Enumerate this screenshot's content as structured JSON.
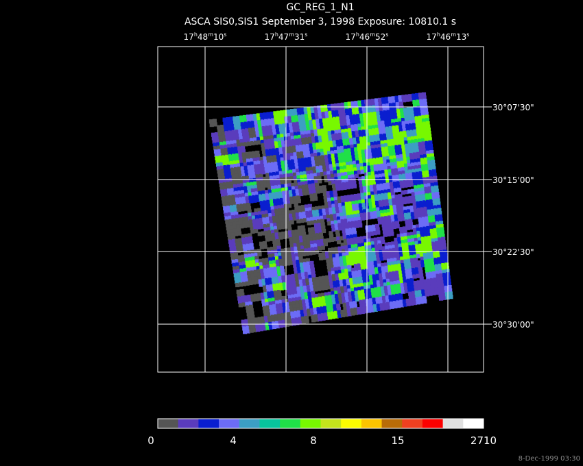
{
  "header": {
    "title": "GC_REG_1_N1",
    "subtitle": "ASCA SIS0,SIS1 September 3, 1998 Exposure: 10810.1 s"
  },
  "ra_labels": [
    [
      "17",
      "h",
      "48",
      "m",
      "10",
      "s"
    ],
    [
      "17",
      "h",
      "47",
      "m",
      "31",
      "s"
    ],
    [
      "17",
      "h",
      "46",
      "m",
      "52",
      "s"
    ],
    [
      "17",
      "h",
      "46",
      "m",
      "13",
      "s"
    ]
  ],
  "dec_labels": [
    "30°07'30\"",
    "30°15'00\"",
    "30°22'30\"",
    "30°30'00\""
  ],
  "colorbar": {
    "colors": [
      "#555555",
      "#5a3cbc",
      "#0a1ecf",
      "#6c6cf6",
      "#3c9ec4",
      "#08c49c",
      "#20e048",
      "#78f800",
      "#c4e41c",
      "#fcfc00",
      "#fcc400",
      "#b86c08",
      "#f04020",
      "#fc0000",
      "#e0e0e0",
      "#ffffff"
    ],
    "labels": [
      "0",
      "4",
      "8",
      "15",
      "2710"
    ]
  },
  "footer": {
    "timestamp": "8-Dec-1999 03:30"
  }
}
